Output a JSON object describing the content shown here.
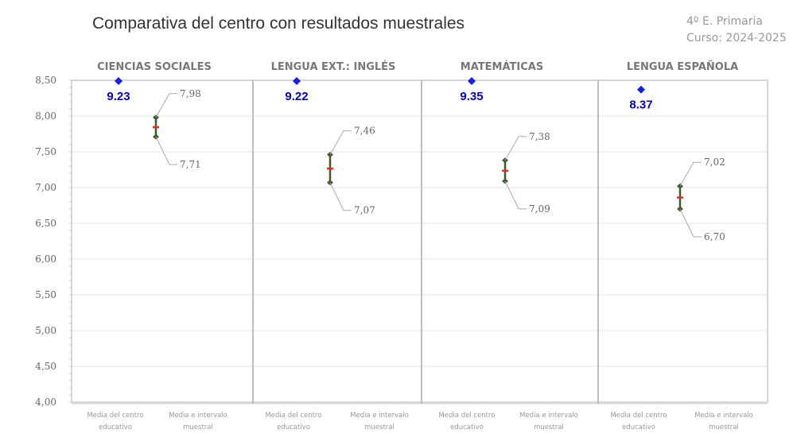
{
  "chart_data": {
    "type": "scatter",
    "title": "Comparativa del centro con resultados muestrales",
    "subtitle": [
      "4º E. Primaria",
      "Curso: 2024-2025"
    ],
    "ylim": [
      4.0,
      8.5
    ],
    "yticks": [
      "4,00",
      "4,50",
      "5,00",
      "5,50",
      "6,00",
      "6,50",
      "7,00",
      "7,50",
      "8,00",
      "8,50"
    ],
    "ytick_values": [
      4.0,
      4.5,
      5.0,
      5.5,
      6.0,
      6.5,
      7.0,
      7.5,
      8.0,
      8.5
    ],
    "grid": true,
    "x_category_labels": [
      [
        "Media del centro",
        "educativo"
      ],
      [
        "Media e intervalo",
        "muestral"
      ]
    ],
    "panels": [
      {
        "subject": "CIENCIAS SOCIALES",
        "centro_mean": 9.23,
        "centro_label": "9.23",
        "upper": 7.98,
        "lower": 7.71,
        "upper_label": "7,98",
        "lower_label": "7,71"
      },
      {
        "subject": "LENGUA EXT.: INGLÉS",
        "centro_mean": 9.22,
        "centro_label": "9.22",
        "upper": 7.46,
        "lower": 7.07,
        "upper_label": "7,46",
        "lower_label": "7,07"
      },
      {
        "subject": "MATEMÁTICAS",
        "centro_mean": 9.35,
        "centro_label": "9.35",
        "upper": 7.38,
        "lower": 7.09,
        "upper_label": "7,38",
        "lower_label": "7,09"
      },
      {
        "subject": "LENGUA ESPAÑOLA",
        "centro_mean": 8.37,
        "centro_label": "8.37",
        "upper": 7.02,
        "lower": 6.7,
        "upper_label": "7,02",
        "lower_label": "6,70"
      }
    ],
    "colors": {
      "centro": "#1a1aff",
      "label": "#0000cc",
      "interval": "#3d5a2a",
      "mean": "#ff2020",
      "grid": "#e6e6e6",
      "text": "#777777"
    }
  }
}
